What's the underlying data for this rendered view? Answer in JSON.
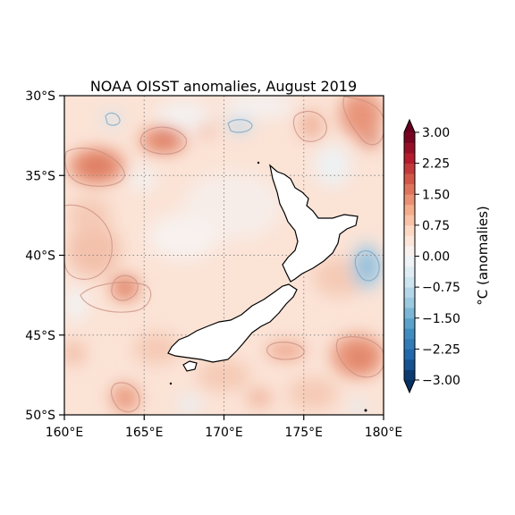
{
  "map": {
    "title": "NOAA OISST anomalies, August 2019",
    "lon_range": [
      160,
      180
    ],
    "lat_range": [
      -50,
      -30
    ],
    "lon_ticks": [
      {
        "value": 160,
        "label": "160°E"
      },
      {
        "value": 165,
        "label": "165°E"
      },
      {
        "value": 170,
        "label": "170°E"
      },
      {
        "value": 175,
        "label": "175°E"
      },
      {
        "value": 180,
        "label": "180°E"
      }
    ],
    "lat_ticks": [
      {
        "value": -30,
        "label": "30°S"
      },
      {
        "value": -35,
        "label": "35°S"
      },
      {
        "value": -40,
        "label": "40°S"
      },
      {
        "value": -45,
        "label": "45°S"
      },
      {
        "value": -50,
        "label": "50°S"
      }
    ],
    "gridlines": true,
    "land_color": "#ffffff",
    "coast_color": "#000000",
    "colormap": "RdBu_r"
  },
  "colorbar": {
    "label": "°C (anomalies)",
    "range": [
      -3,
      3
    ],
    "levels": [
      -3.0,
      -2.75,
      -2.5,
      -2.25,
      -2.0,
      -1.75,
      -1.5,
      -1.25,
      -1.0,
      -0.75,
      -0.5,
      -0.25,
      0.0,
      0.25,
      0.5,
      0.75,
      1.0,
      1.25,
      1.5,
      1.75,
      2.0,
      2.25,
      2.5,
      2.75,
      3.0
    ],
    "extend": "both",
    "ticks": [
      {
        "value": 3.0,
        "label": "3.00"
      },
      {
        "value": 2.25,
        "label": "2.25"
      },
      {
        "value": 1.5,
        "label": "1.50"
      },
      {
        "value": 0.75,
        "label": "0.75"
      },
      {
        "value": 0.0,
        "label": "0.00"
      },
      {
        "value": -0.75,
        "label": "−0.75"
      },
      {
        "value": -1.5,
        "label": "−1.50"
      },
      {
        "value": -2.25,
        "label": "−2.25"
      },
      {
        "value": -3.0,
        "label": "−3.00"
      }
    ]
  }
}
